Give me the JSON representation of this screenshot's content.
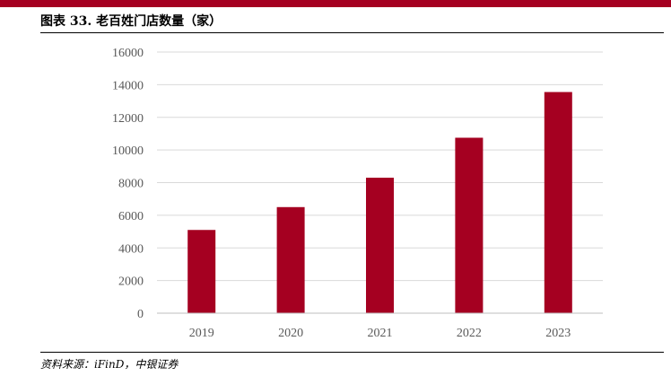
{
  "header": {
    "title": "图表 33. 老百姓门店数量（家）",
    "accent_color": "#A50021"
  },
  "footer": {
    "source": "资料来源：iFinD，中银证券"
  },
  "chart_data": {
    "type": "bar",
    "categories": [
      "2019",
      "2020",
      "2021",
      "2022",
      "2023"
    ],
    "series": [
      {
        "values": [
          5100,
          6500,
          8300,
          10750,
          13550
        ],
        "color": "#A50021"
      }
    ],
    "ylim": [
      0,
      16000
    ],
    "yticks": [
      0,
      2000,
      4000,
      6000,
      8000,
      10000,
      12000,
      14000,
      16000
    ],
    "grid": true,
    "legend": "none"
  }
}
